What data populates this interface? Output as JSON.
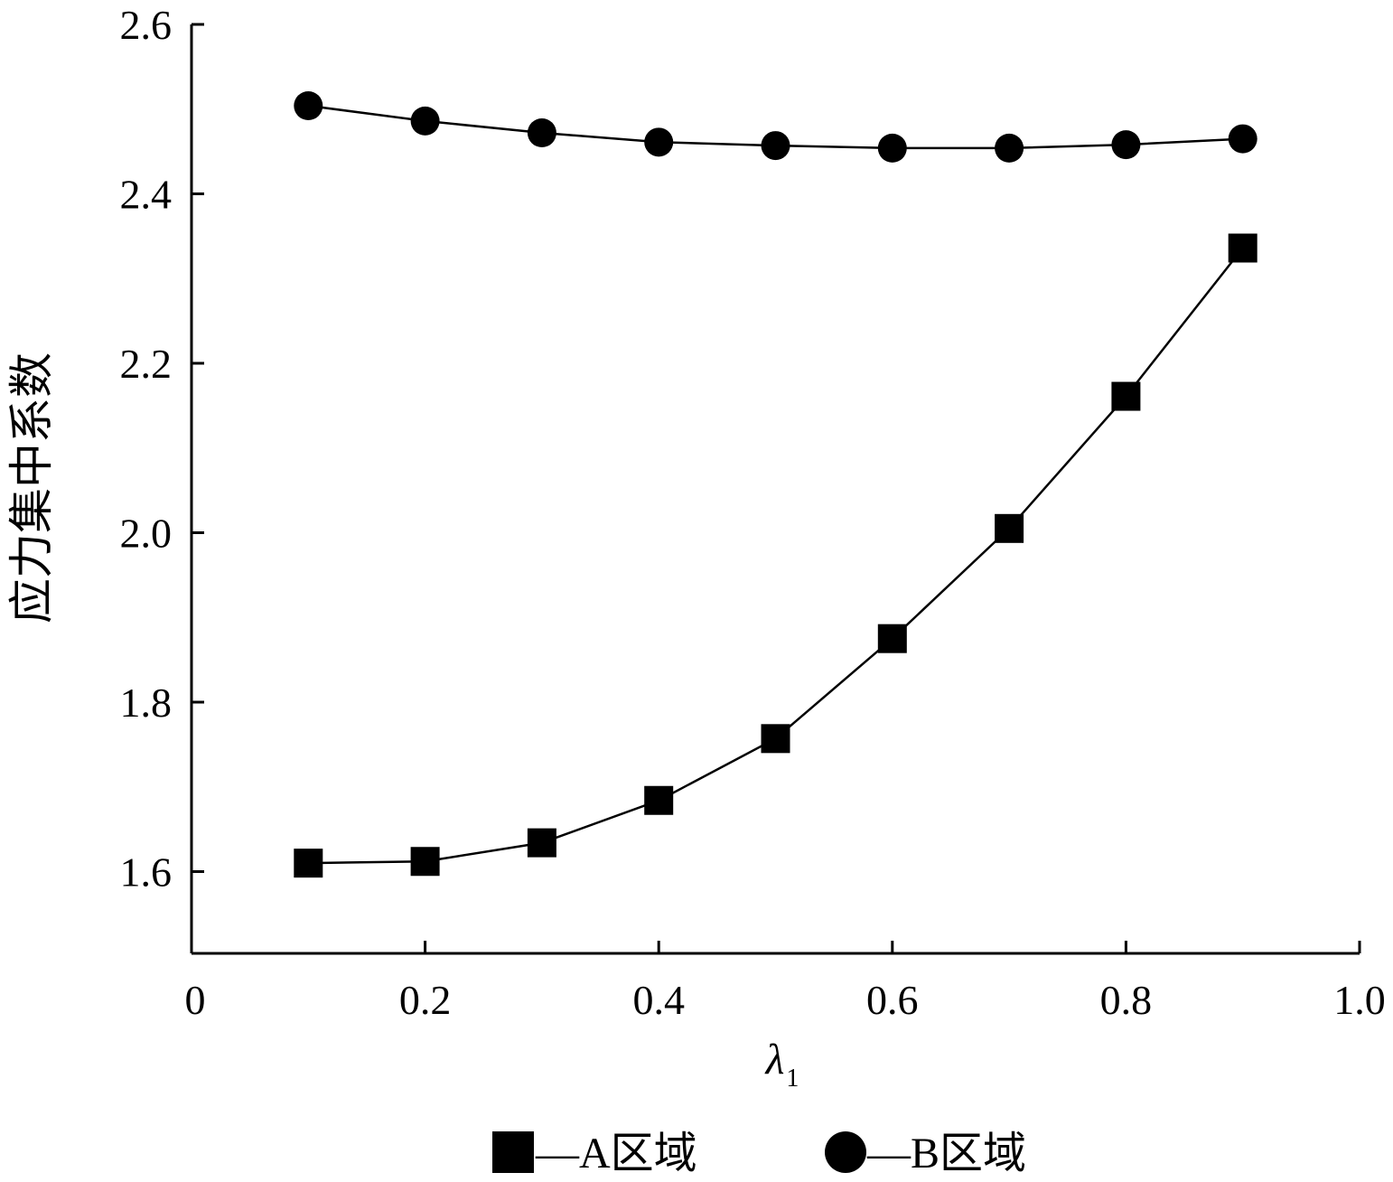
{
  "chart_data": {
    "type": "line",
    "xlabel": "λ",
    "xlabel_subscript": "1",
    "ylabel": "应力集中系数",
    "xlim": [
      0,
      1.0
    ],
    "ylim": [
      1.5,
      2.6
    ],
    "x_ticks": [
      "0",
      "0.2",
      "0.4",
      "0.6",
      "0.8",
      "1.0"
    ],
    "y_ticks": [
      "1.6",
      "1.8",
      "2.0",
      "2.2",
      "2.4",
      "2.6"
    ],
    "x": [
      0.1,
      0.2,
      0.3,
      0.4,
      0.5,
      0.6,
      0.7,
      0.8,
      0.9
    ],
    "series": [
      {
        "name": "A区域",
        "marker": "square",
        "values": [
          1.61,
          1.612,
          1.634,
          1.684,
          1.757,
          1.875,
          2.005,
          2.161,
          2.336
        ]
      },
      {
        "name": "B区域",
        "marker": "circle",
        "values": [
          2.504,
          2.486,
          2.472,
          2.461,
          2.457,
          2.454,
          2.454,
          2.458,
          2.465
        ]
      }
    ],
    "grid": false,
    "legend_position": "bottom",
    "legend_separator": "—",
    "colors": {
      "line": "#000000",
      "marker": "#000000"
    }
  }
}
